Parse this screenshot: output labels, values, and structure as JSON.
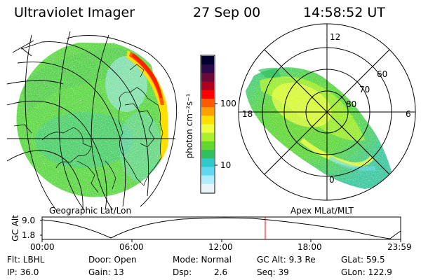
{
  "header": {
    "instrument": "Ultraviolet Imager",
    "date": "27 Sep 00",
    "time": "14:58:52 UT"
  },
  "colorbar": {
    "unit_label": "photon cm⁻²s⁻¹",
    "ticks": [
      "100",
      "10"
    ],
    "colors": [
      "#000030",
      "#2a0a4a",
      "#6a0a3a",
      "#b00020",
      "#ff0000",
      "#ff5a00",
      "#ffa000",
      "#ffe000",
      "#f0ff40",
      "#a8f030",
      "#60d830",
      "#30c060",
      "#30c8c8",
      "#60d8f0",
      "#b0ecff",
      "#e8f4f8"
    ]
  },
  "left_map": {
    "label": "Geographic Lat/Lon"
  },
  "right_map": {
    "label": "Apex MLat/MLT",
    "mlt_labels": [
      "12",
      "18",
      "6",
      "0"
    ],
    "lat_labels": [
      "60",
      "70",
      "80"
    ]
  },
  "altitude_plot": {
    "ylabel": "GC Alt",
    "y_ticks": [
      "9.0",
      "1.8"
    ],
    "x_ticks": [
      "00:00",
      "06:00",
      "12:00",
      "18:00",
      "23:59"
    ]
  },
  "info": {
    "flt": "Flt: LBHL",
    "ip": "IP: 36.0",
    "door": "Door: Open",
    "gain": "Gain: 13",
    "mode": "Mode: Normal",
    "dsp_label": "Dsp:",
    "dsp_value": "2.6",
    "gc_alt": "GC Alt: 9.3 Re",
    "seq": "Seq: 39",
    "glat": "GLat:  59.5",
    "glon": "GLon: 122.9"
  },
  "colors": {
    "auroral_green": "#6ad830",
    "auroral_yellow": "#f0ff40",
    "background_cyan": "#60d8f0",
    "current_time_marker": "#ff0000"
  }
}
